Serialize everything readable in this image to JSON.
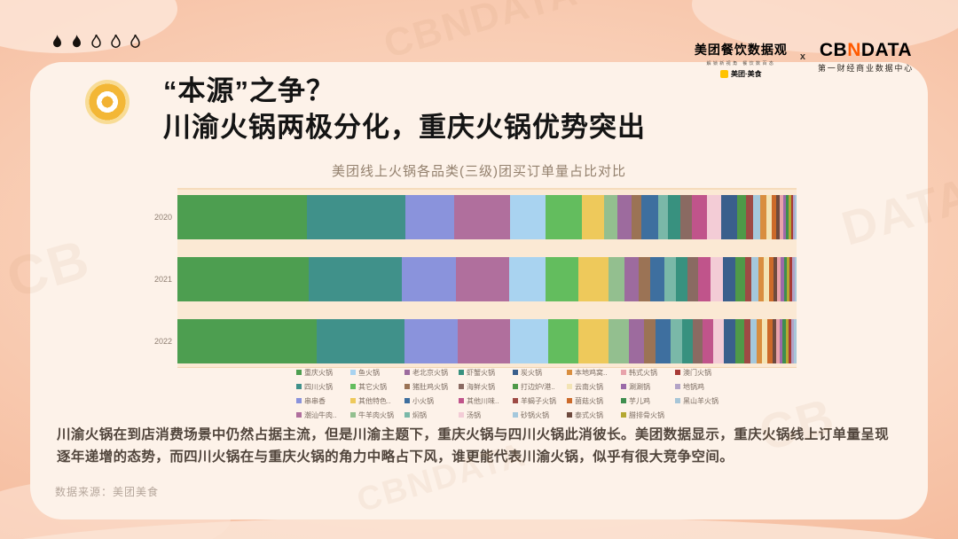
{
  "page": {
    "background": "#f8c9ae",
    "card_bg": "#fdf2e9",
    "accent": "#ffc300"
  },
  "decor": {
    "flames_total": 5,
    "flames_filled": 2,
    "watermarks": [
      "CBNDATA",
      "CB",
      "DATA",
      "CBNDATA",
      "CB"
    ]
  },
  "logos": {
    "meituan": {
      "title": "美团餐饮数据观",
      "tagline": "解锁新视角 餐饮数百态",
      "brand": "美团·美食"
    },
    "separator": "x",
    "cbndata": {
      "cb": "CB",
      "n": "N",
      "data": "DATA",
      "subtitle": "第一财经商业数据中心",
      "n_color": "#ff5a00"
    }
  },
  "header": {
    "title_line1": "“本源”之争？",
    "title_line2": "川渝火锅两极分化，重庆火锅优势突出"
  },
  "chart_data": {
    "type": "bar",
    "stacked": true,
    "orientation": "horizontal",
    "unit": "percent share of orders (estimated from bar lengths; no numeric labels shown)",
    "title": "美团线上火锅各品类(三级)团买订单量占比对比",
    "categories": [
      "2020",
      "2021",
      "2022"
    ],
    "xlim": [
      0,
      100
    ],
    "grid": false,
    "legend_position": "bottom",
    "series": [
      {
        "name": "重庆火锅",
        "color": "#4d9e50",
        "values": [
          20.9,
          21.2,
          22.5
        ]
      },
      {
        "name": "四川火锅",
        "color": "#40918a",
        "values": [
          15.9,
          14.9,
          14.2
        ]
      },
      {
        "name": "串串香",
        "color": "#8a93dc",
        "values": [
          7.9,
          8.8,
          8.6
        ]
      },
      {
        "name": "潮汕牛肉..",
        "color": "#b06f9d",
        "values": [
          9.0,
          8.5,
          8.4
        ]
      },
      {
        "name": "鱼火锅",
        "color": "#a9d3f0",
        "values": [
          5.8,
          5.9,
          6.2
        ]
      },
      {
        "name": "其它火锅",
        "color": "#63bd5e",
        "values": [
          5.8,
          5.3,
          4.9
        ]
      },
      {
        "name": "其他特色..",
        "color": "#eec95b",
        "values": [
          3.6,
          4.8,
          4.9
        ]
      },
      {
        "name": "牛羊肉火锅",
        "color": "#93bf8f",
        "values": [
          2.2,
          2.6,
          3.2
        ]
      },
      {
        "name": "老北京火锅",
        "color": "#9d6b9e",
        "values": [
          2.2,
          2.3,
          2.4
        ]
      },
      {
        "name": "猪肚鸡火锅",
        "color": "#9b7355",
        "values": [
          1.7,
          1.8,
          1.9
        ]
      },
      {
        "name": "小火锅",
        "color": "#3e6f9f",
        "values": [
          2.6,
          2.4,
          2.4
        ]
      },
      {
        "name": "焖锅",
        "color": "#7ab8a8",
        "values": [
          1.7,
          1.8,
          1.9
        ]
      },
      {
        "name": "虾蟹火锅",
        "color": "#38917f",
        "values": [
          1.9,
          1.8,
          1.7
        ]
      },
      {
        "name": "海鲜火锅",
        "color": "#8a6a62",
        "values": [
          1.9,
          1.8,
          1.7
        ]
      },
      {
        "name": "其他川味..",
        "color": "#c0548b",
        "values": [
          2.5,
          2.0,
          1.6
        ]
      },
      {
        "name": "汤锅",
        "color": "#f3ccd6",
        "values": [
          2.2,
          2.0,
          1.8
        ]
      },
      {
        "name": "炭火锅",
        "color": "#3a5f8c",
        "values": [
          2.6,
          2.0,
          1.9
        ]
      },
      {
        "name": "打边炉/港..",
        "color": "#4f9948",
        "values": [
          1.4,
          1.5,
          1.4
        ]
      },
      {
        "name": "羊蝎子火锅",
        "color": "#9e4a44",
        "values": [
          1.2,
          1.1,
          1.0
        ]
      },
      {
        "name": "砂锅火锅",
        "color": "#a5c8dc",
        "values": [
          1.2,
          1.1,
          1.0
        ]
      },
      {
        "name": "本地鸡窝..",
        "color": "#d98e3f",
        "values": [
          0.9,
          0.9,
          0.9
        ]
      },
      {
        "name": "云南火锅",
        "color": "#f3e4b5",
        "values": [
          0.9,
          0.8,
          0.8
        ]
      },
      {
        "name": "菌菇火锅",
        "color": "#cc6a2a",
        "values": [
          0.7,
          0.7,
          0.8
        ]
      },
      {
        "name": "泰式火锅",
        "color": "#6e4a3e",
        "values": [
          0.6,
          0.6,
          0.6
        ]
      },
      {
        "name": "韩式火锅",
        "color": "#e8a3ab",
        "values": [
          0.6,
          0.6,
          0.6
        ]
      },
      {
        "name": "涮涮锅",
        "color": "#9b6aa8",
        "values": [
          0.4,
          0.5,
          0.5
        ]
      },
      {
        "name": "芋儿鸡",
        "color": "#3f8e4f",
        "values": [
          0.4,
          0.5,
          0.5
        ]
      },
      {
        "name": "腊排骨火锅",
        "color": "#b5a832",
        "values": [
          0.4,
          0.4,
          0.5
        ]
      },
      {
        "name": "澳门火锅",
        "color": "#a83a36",
        "values": [
          0.4,
          0.4,
          0.4
        ]
      },
      {
        "name": "地锅鸡",
        "color": "#b3a3c6",
        "values": [
          0.3,
          0.4,
          0.4
        ]
      },
      {
        "name": "黑山羊火锅",
        "color": "#a7c6d8",
        "values": [
          0.2,
          0.3,
          0.4
        ]
      }
    ]
  },
  "body_text": "川渝火锅在到店消费场景中仍然占据主流，但是川渝主题下，重庆火锅与四川火锅此消彼长。美团数据显示，重庆火锅线上订单量呈现逐年递增的态势，而四川火锅在与重庆火锅的角力中略占下风，谁更能代表川渝火锅，似乎有很大竞争空间。",
  "source": "数据来源：美团美食"
}
